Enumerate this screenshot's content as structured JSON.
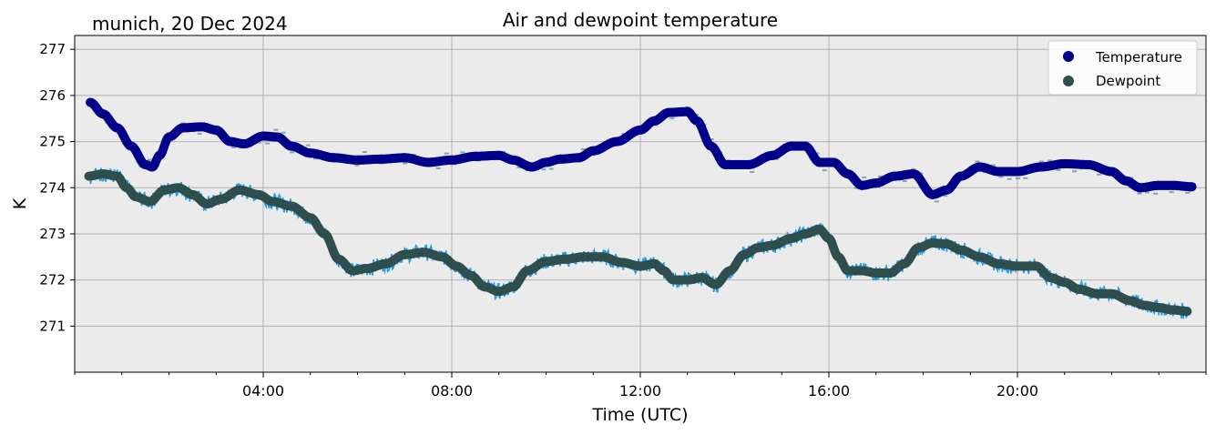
{
  "chart_data": {
    "type": "scatter",
    "title": "Air and dewpoint temperature",
    "subtitle": "munich, 20 Dec 2024",
    "xlabel": "Time (UTC)",
    "ylabel": "K",
    "x_unit": "hours UTC",
    "xlim": [
      0,
      24
    ],
    "ylim": [
      270,
      277.3
    ],
    "xticks": [
      {
        "value": 4,
        "label": "04:00"
      },
      {
        "value": 8,
        "label": "08:00"
      },
      {
        "value": 12,
        "label": "12:00"
      },
      {
        "value": 16,
        "label": "16:00"
      },
      {
        "value": 20,
        "label": "20:00"
      }
    ],
    "yticks": [
      271,
      272,
      273,
      274,
      275,
      276,
      277
    ],
    "grid": true,
    "legend_position": "top-right",
    "plot_background": "#ebebeb",
    "series": [
      {
        "name": "Temperature",
        "color": "#00008b",
        "raw_color": "#7fa8a8",
        "x": [
          0.33,
          0.6,
          0.9,
          1.2,
          1.5,
          1.65,
          1.8,
          2.0,
          2.3,
          2.7,
          3.0,
          3.3,
          3.6,
          4.0,
          4.3,
          4.6,
          5.0,
          5.5,
          6.0,
          6.5,
          7.0,
          7.5,
          8.0,
          8.5,
          9.0,
          9.3,
          9.7,
          10.0,
          10.3,
          10.7,
          11.0,
          11.5,
          12.0,
          12.3,
          12.6,
          13.0,
          13.2,
          13.5,
          13.8,
          14.3,
          14.8,
          15.2,
          15.5,
          15.8,
          16.1,
          16.4,
          16.7,
          17.0,
          17.4,
          17.8,
          18.2,
          18.5,
          18.8,
          19.2,
          19.6,
          20.0,
          20.5,
          21.0,
          21.5,
          22.0,
          22.3,
          22.6,
          23.0,
          23.3,
          23.7
        ],
        "y": [
          275.85,
          275.6,
          275.3,
          274.9,
          274.5,
          274.45,
          274.7,
          275.1,
          275.3,
          275.32,
          275.25,
          275.0,
          274.95,
          275.12,
          275.1,
          274.9,
          274.75,
          274.65,
          274.6,
          274.62,
          274.65,
          274.55,
          274.6,
          274.68,
          274.7,
          274.6,
          274.45,
          274.55,
          274.62,
          274.65,
          274.8,
          275.0,
          275.25,
          275.45,
          275.63,
          275.65,
          275.45,
          274.9,
          274.5,
          274.5,
          274.7,
          274.9,
          274.9,
          274.55,
          274.55,
          274.3,
          274.05,
          274.1,
          274.25,
          274.3,
          273.85,
          273.95,
          274.25,
          274.45,
          274.35,
          274.35,
          274.45,
          274.52,
          274.5,
          274.35,
          274.15,
          274.0,
          274.05,
          274.05,
          274.02
        ]
      },
      {
        "name": "Dewpoint",
        "color": "#2f4f4f",
        "raw_color": "#1f9de8",
        "x": [
          0.3,
          0.6,
          0.9,
          1.1,
          1.3,
          1.6,
          1.9,
          2.2,
          2.5,
          2.8,
          3.1,
          3.5,
          3.9,
          4.2,
          4.6,
          5.0,
          5.3,
          5.6,
          5.9,
          6.2,
          6.6,
          7.0,
          7.4,
          7.8,
          8.1,
          8.4,
          8.7,
          9.0,
          9.3,
          9.6,
          10.0,
          10.4,
          10.8,
          11.2,
          11.6,
          12.0,
          12.3,
          12.5,
          12.7,
          13.0,
          13.3,
          13.6,
          13.9,
          14.2,
          14.5,
          14.8,
          15.2,
          15.5,
          15.8,
          16.0,
          16.2,
          16.4,
          16.7,
          17.0,
          17.3,
          17.6,
          17.9,
          18.2,
          18.5,
          18.8,
          19.2,
          19.6,
          20.0,
          20.4,
          20.7,
          21.0,
          21.3,
          21.7,
          22.0,
          22.4,
          22.7,
          23.0,
          23.3,
          23.6
        ],
        "y": [
          274.25,
          274.3,
          274.25,
          274.0,
          273.8,
          273.7,
          273.95,
          274.0,
          273.85,
          273.65,
          273.75,
          273.95,
          273.85,
          273.7,
          273.6,
          273.35,
          273.0,
          272.45,
          272.2,
          272.25,
          272.35,
          272.55,
          272.6,
          272.5,
          272.3,
          272.1,
          271.85,
          271.75,
          271.85,
          272.2,
          272.4,
          272.45,
          272.5,
          272.5,
          272.38,
          272.3,
          272.35,
          272.2,
          272.0,
          272.0,
          272.05,
          271.9,
          272.2,
          272.55,
          272.7,
          272.75,
          272.9,
          273.0,
          273.1,
          272.9,
          272.5,
          272.2,
          272.2,
          272.15,
          272.15,
          272.35,
          272.7,
          272.8,
          272.78,
          272.65,
          272.5,
          272.35,
          272.3,
          272.3,
          272.05,
          271.95,
          271.8,
          271.7,
          271.7,
          271.55,
          271.45,
          271.4,
          271.35,
          271.32
        ]
      }
    ]
  }
}
